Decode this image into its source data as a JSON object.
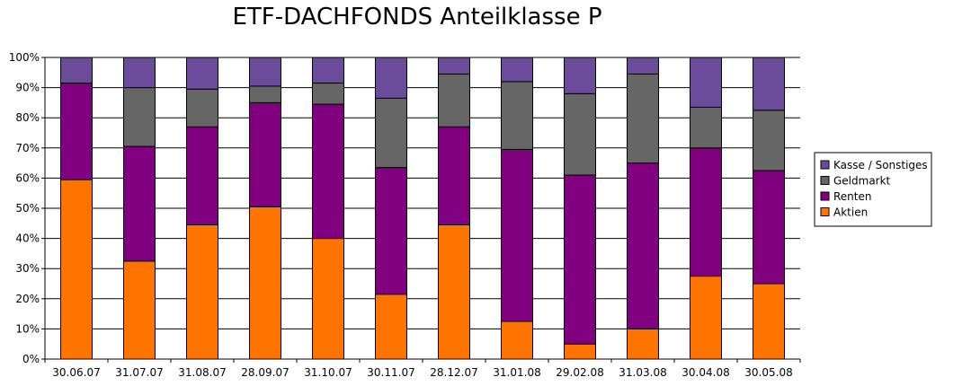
{
  "chart_data": {
    "type": "bar",
    "stacked": true,
    "title": "ETF-DACHFONDS Anteilklasse P",
    "xlabel": "",
    "ylabel": "",
    "ylim": [
      0,
      100
    ],
    "y_ticks": [
      "0%",
      "10%",
      "20%",
      "30%",
      "40%",
      "50%",
      "60%",
      "70%",
      "80%",
      "90%",
      "100%"
    ],
    "grid": true,
    "legend_position": "right",
    "categories": [
      "30.06.07",
      "31.07.07",
      "31.08.07",
      "28.09.07",
      "31.10.07",
      "30.11.07",
      "28.12.07",
      "31.01.08",
      "29.02.08",
      "31.03.08",
      "30.04.08",
      "30.05.08"
    ],
    "series": [
      {
        "name": "Aktien",
        "color": "#ff7300",
        "values": [
          59.5,
          32.5,
          44.5,
          50.5,
          40,
          21.5,
          44.5,
          12.5,
          5,
          10,
          27.5,
          25
        ]
      },
      {
        "name": "Renten",
        "color": "#800080",
        "values": [
          32,
          38,
          32.5,
          34.5,
          44.5,
          42,
          32.5,
          57,
          56,
          55,
          42.5,
          37.5
        ]
      },
      {
        "name": "Geldmarkt",
        "color": "#666666",
        "values": [
          0,
          19.5,
          12.5,
          5.5,
          7,
          23,
          17.5,
          22.5,
          27,
          29.5,
          13.5,
          20
        ]
      },
      {
        "name": "Kasse / Sonstiges",
        "color": "#6b4c9a",
        "values": [
          8.5,
          10,
          10.5,
          9.5,
          8.5,
          13.5,
          5.5,
          8,
          12,
          5.5,
          16.5,
          17.5
        ]
      }
    ],
    "legend_order": [
      "Kasse / Sonstiges",
      "Geldmarkt",
      "Renten",
      "Aktien"
    ]
  }
}
